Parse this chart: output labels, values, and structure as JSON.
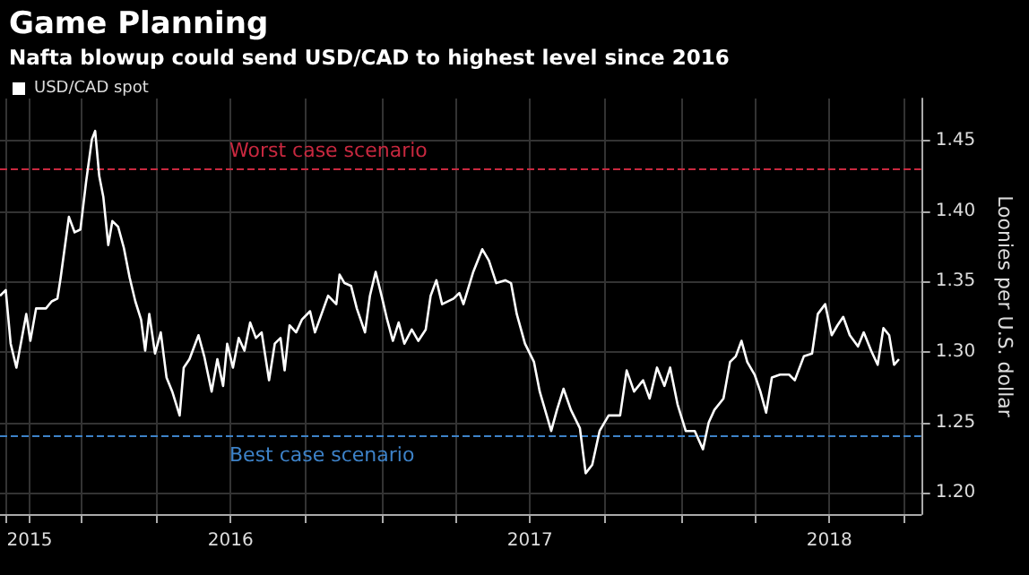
{
  "chart_data": {
    "type": "line",
    "title": "Game Planning",
    "subtitle": "Nafta blowup could send USD/CAD to highest level since 2016",
    "ylabel": "Loonies per U.S. dollar",
    "legend": "top left",
    "grid": true,
    "line_style": "solid",
    "marker": "none",
    "xlim": [
      "2015-09-24",
      "2018-10-21"
    ],
    "ylim": [
      1.185,
      1.48
    ],
    "yticks": [
      {
        "value": 1.2,
        "label": "1.20"
      },
      1.25,
      {
        "value": 1.3,
        "label": "1.30"
      },
      1.35,
      {
        "value": 1.4,
        "label": "1.40"
      },
      1.45
    ],
    "xticks": [
      {
        "value": "2015-10-01",
        "label": null
      },
      {
        "value": "2015-10-30",
        "label": "2015"
      },
      {
        "value": "2016-01-01",
        "label": null
      },
      {
        "value": "2016-04-01",
        "label": null
      },
      {
        "value": "2016-07-01",
        "label": "2016"
      },
      {
        "value": "2016-10-01",
        "label": null
      },
      {
        "value": "2017-01-01",
        "label": null
      },
      {
        "value": "2017-04-01",
        "label": null
      },
      {
        "value": "2017-07-01",
        "label": "2017"
      },
      {
        "value": "2017-10-01",
        "label": null
      },
      {
        "value": "2018-01-01",
        "label": null
      },
      {
        "value": "2018-04-01",
        "label": null
      },
      {
        "value": "2018-07-01",
        "label": "2018"
      },
      {
        "value": "2018-10-01",
        "label": null
      }
    ],
    "ref_lines": [
      {
        "axis": "y",
        "value": 1.43,
        "label": "Worst case scenario",
        "color": "#c8283f",
        "line_style": "dashed"
      },
      {
        "axis": "y",
        "value": 1.24,
        "label": "Best case scenario",
        "color": "#3d82c8",
        "line_style": "dashed"
      }
    ],
    "series": [
      {
        "name": "USD/CAD spot",
        "color": "#ffffff",
        "x": [
          "2015-09-24",
          "2015-10-01",
          "2015-10-07",
          "2015-10-14",
          "2015-10-26",
          "2015-10-31",
          "2015-11-07",
          "2015-11-19",
          "2015-11-26",
          "2015-12-03",
          "2015-12-07",
          "2015-12-17",
          "2015-12-24",
          "2015-12-31",
          "2016-01-07",
          "2016-01-14",
          "2016-01-18",
          "2016-01-23",
          "2016-01-28",
          "2016-02-03",
          "2016-02-08",
          "2016-02-15",
          "2016-02-22",
          "2016-02-29",
          "2016-03-07",
          "2016-03-14",
          "2016-03-19",
          "2016-03-24",
          "2016-03-31",
          "2016-04-07",
          "2016-04-14",
          "2016-04-21",
          "2016-04-30",
          "2016-05-05",
          "2016-05-12",
          "2016-05-23",
          "2016-05-30",
          "2016-06-08",
          "2016-06-15",
          "2016-06-22",
          "2016-06-27",
          "2016-07-04",
          "2016-07-11",
          "2016-07-18",
          "2016-07-25",
          "2016-08-01",
          "2016-08-08",
          "2016-08-17",
          "2016-08-24",
          "2016-08-31",
          "2016-09-05",
          "2016-09-11",
          "2016-09-19",
          "2016-09-26",
          "2016-10-06",
          "2016-10-12",
          "2016-10-20",
          "2016-10-28",
          "2016-11-07",
          "2016-11-11",
          "2016-11-17",
          "2016-11-25",
          "2016-12-02",
          "2016-12-12",
          "2016-12-18",
          "2016-12-25",
          "2017-01-02",
          "2017-01-08",
          "2017-01-15",
          "2017-01-22",
          "2017-01-29",
          "2017-02-07",
          "2017-02-15",
          "2017-02-24",
          "2017-03-02",
          "2017-03-09",
          "2017-03-16",
          "2017-03-30",
          "2017-04-06",
          "2017-04-11",
          "2017-04-23",
          "2017-05-04",
          "2017-05-12",
          "2017-05-21",
          "2017-06-01",
          "2017-06-08",
          "2017-06-15",
          "2017-06-25",
          "2017-07-06",
          "2017-07-13",
          "2017-07-27",
          "2017-08-03",
          "2017-08-11",
          "2017-08-20",
          "2017-08-31",
          "2017-09-07",
          "2017-09-15",
          "2017-09-24",
          "2017-10-05",
          "2017-10-19",
          "2017-10-27",
          "2017-11-05",
          "2017-11-16",
          "2017-11-24",
          "2017-12-03",
          "2017-12-12",
          "2017-12-19",
          "2017-12-28",
          "2018-01-07",
          "2018-01-18",
          "2018-01-28",
          "2018-02-04",
          "2018-02-11",
          "2018-02-22",
          "2018-03-02",
          "2018-03-09",
          "2018-03-16",
          "2018-03-23",
          "2018-04-01",
          "2018-04-08",
          "2018-04-15",
          "2018-04-22",
          "2018-05-02",
          "2018-05-13",
          "2018-05-20",
          "2018-05-31",
          "2018-06-10",
          "2018-06-17",
          "2018-06-26",
          "2018-07-04",
          "2018-07-11",
          "2018-07-18",
          "2018-07-26",
          "2018-08-05",
          "2018-08-12",
          "2018-08-21",
          "2018-08-29",
          "2018-09-05",
          "2018-09-12",
          "2018-09-18",
          "2018-09-24"
        ],
        "values": [
          1.34,
          1.344,
          1.306,
          1.289,
          1.327,
          1.308,
          1.331,
          1.331,
          1.336,
          1.338,
          1.353,
          1.396,
          1.385,
          1.387,
          1.421,
          1.451,
          1.457,
          1.425,
          1.41,
          1.376,
          1.393,
          1.389,
          1.374,
          1.353,
          1.336,
          1.323,
          1.301,
          1.327,
          1.299,
          1.314,
          1.282,
          1.272,
          1.255,
          1.289,
          1.295,
          1.312,
          1.297,
          1.272,
          1.295,
          1.276,
          1.306,
          1.289,
          1.31,
          1.301,
          1.321,
          1.31,
          1.314,
          1.28,
          1.306,
          1.31,
          1.287,
          1.319,
          1.314,
          1.323,
          1.329,
          1.314,
          1.327,
          1.34,
          1.334,
          1.355,
          1.349,
          1.347,
          1.331,
          1.314,
          1.34,
          1.357,
          1.338,
          1.323,
          1.308,
          1.321,
          1.306,
          1.316,
          1.308,
          1.316,
          1.34,
          1.351,
          1.334,
          1.338,
          1.342,
          1.334,
          1.357,
          1.373,
          1.365,
          1.349,
          1.351,
          1.349,
          1.327,
          1.306,
          1.293,
          1.272,
          1.244,
          1.259,
          1.274,
          1.259,
          1.246,
          1.214,
          1.22,
          1.244,
          1.255,
          1.255,
          1.287,
          1.272,
          1.28,
          1.267,
          1.289,
          1.276,
          1.289,
          1.263,
          1.244,
          1.244,
          1.231,
          1.25,
          1.259,
          1.267,
          1.293,
          1.297,
          1.308,
          1.293,
          1.284,
          1.272,
          1.257,
          1.282,
          1.284,
          1.284,
          1.28,
          1.297,
          1.299,
          1.327,
          1.334,
          1.312,
          1.319,
          1.325,
          1.312,
          1.304,
          1.314,
          1.301,
          1.291,
          1.317,
          1.312,
          1.291,
          1.295
        ]
      }
    ]
  }
}
